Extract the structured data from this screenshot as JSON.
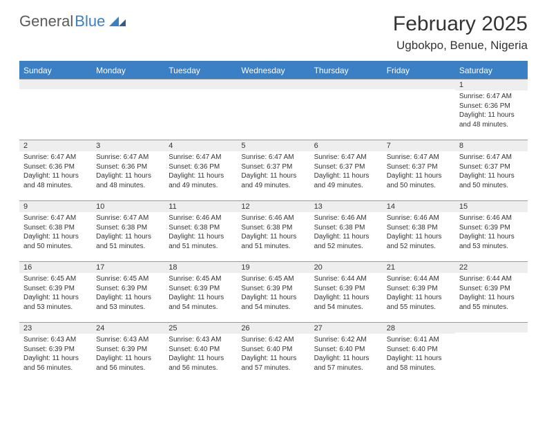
{
  "logo": {
    "text_a": "General",
    "text_b": "Blue"
  },
  "title": "February 2025",
  "location": "Ugbokpo, Benue, Nigeria",
  "colors": {
    "header_bg": "#3b7fc4",
    "header_fg": "#ffffff",
    "daynum_bg": "#eeeeee",
    "rule": "#999999"
  },
  "weekdays": [
    "Sunday",
    "Monday",
    "Tuesday",
    "Wednesday",
    "Thursday",
    "Friday",
    "Saturday"
  ],
  "grid": [
    [
      {
        "n": "",
        "lines": []
      },
      {
        "n": "",
        "lines": []
      },
      {
        "n": "",
        "lines": []
      },
      {
        "n": "",
        "lines": []
      },
      {
        "n": "",
        "lines": []
      },
      {
        "n": "",
        "lines": []
      },
      {
        "n": "1",
        "lines": [
          "Sunrise: 6:47 AM",
          "Sunset: 6:36 PM",
          "Daylight: 11 hours and 48 minutes."
        ]
      }
    ],
    [
      {
        "n": "2",
        "lines": [
          "Sunrise: 6:47 AM",
          "Sunset: 6:36 PM",
          "Daylight: 11 hours and 48 minutes."
        ]
      },
      {
        "n": "3",
        "lines": [
          "Sunrise: 6:47 AM",
          "Sunset: 6:36 PM",
          "Daylight: 11 hours and 48 minutes."
        ]
      },
      {
        "n": "4",
        "lines": [
          "Sunrise: 6:47 AM",
          "Sunset: 6:36 PM",
          "Daylight: 11 hours and 49 minutes."
        ]
      },
      {
        "n": "5",
        "lines": [
          "Sunrise: 6:47 AM",
          "Sunset: 6:37 PM",
          "Daylight: 11 hours and 49 minutes."
        ]
      },
      {
        "n": "6",
        "lines": [
          "Sunrise: 6:47 AM",
          "Sunset: 6:37 PM",
          "Daylight: 11 hours and 49 minutes."
        ]
      },
      {
        "n": "7",
        "lines": [
          "Sunrise: 6:47 AM",
          "Sunset: 6:37 PM",
          "Daylight: 11 hours and 50 minutes."
        ]
      },
      {
        "n": "8",
        "lines": [
          "Sunrise: 6:47 AM",
          "Sunset: 6:37 PM",
          "Daylight: 11 hours and 50 minutes."
        ]
      }
    ],
    [
      {
        "n": "9",
        "lines": [
          "Sunrise: 6:47 AM",
          "Sunset: 6:38 PM",
          "Daylight: 11 hours and 50 minutes."
        ]
      },
      {
        "n": "10",
        "lines": [
          "Sunrise: 6:47 AM",
          "Sunset: 6:38 PM",
          "Daylight: 11 hours and 51 minutes."
        ]
      },
      {
        "n": "11",
        "lines": [
          "Sunrise: 6:46 AM",
          "Sunset: 6:38 PM",
          "Daylight: 11 hours and 51 minutes."
        ]
      },
      {
        "n": "12",
        "lines": [
          "Sunrise: 6:46 AM",
          "Sunset: 6:38 PM",
          "Daylight: 11 hours and 51 minutes."
        ]
      },
      {
        "n": "13",
        "lines": [
          "Sunrise: 6:46 AM",
          "Sunset: 6:38 PM",
          "Daylight: 11 hours and 52 minutes."
        ]
      },
      {
        "n": "14",
        "lines": [
          "Sunrise: 6:46 AM",
          "Sunset: 6:38 PM",
          "Daylight: 11 hours and 52 minutes."
        ]
      },
      {
        "n": "15",
        "lines": [
          "Sunrise: 6:46 AM",
          "Sunset: 6:39 PM",
          "Daylight: 11 hours and 53 minutes."
        ]
      }
    ],
    [
      {
        "n": "16",
        "lines": [
          "Sunrise: 6:45 AM",
          "Sunset: 6:39 PM",
          "Daylight: 11 hours and 53 minutes."
        ]
      },
      {
        "n": "17",
        "lines": [
          "Sunrise: 6:45 AM",
          "Sunset: 6:39 PM",
          "Daylight: 11 hours and 53 minutes."
        ]
      },
      {
        "n": "18",
        "lines": [
          "Sunrise: 6:45 AM",
          "Sunset: 6:39 PM",
          "Daylight: 11 hours and 54 minutes."
        ]
      },
      {
        "n": "19",
        "lines": [
          "Sunrise: 6:45 AM",
          "Sunset: 6:39 PM",
          "Daylight: 11 hours and 54 minutes."
        ]
      },
      {
        "n": "20",
        "lines": [
          "Sunrise: 6:44 AM",
          "Sunset: 6:39 PM",
          "Daylight: 11 hours and 54 minutes."
        ]
      },
      {
        "n": "21",
        "lines": [
          "Sunrise: 6:44 AM",
          "Sunset: 6:39 PM",
          "Daylight: 11 hours and 55 minutes."
        ]
      },
      {
        "n": "22",
        "lines": [
          "Sunrise: 6:44 AM",
          "Sunset: 6:39 PM",
          "Daylight: 11 hours and 55 minutes."
        ]
      }
    ],
    [
      {
        "n": "23",
        "lines": [
          "Sunrise: 6:43 AM",
          "Sunset: 6:39 PM",
          "Daylight: 11 hours and 56 minutes."
        ]
      },
      {
        "n": "24",
        "lines": [
          "Sunrise: 6:43 AM",
          "Sunset: 6:39 PM",
          "Daylight: 11 hours and 56 minutes."
        ]
      },
      {
        "n": "25",
        "lines": [
          "Sunrise: 6:43 AM",
          "Sunset: 6:40 PM",
          "Daylight: 11 hours and 56 minutes."
        ]
      },
      {
        "n": "26",
        "lines": [
          "Sunrise: 6:42 AM",
          "Sunset: 6:40 PM",
          "Daylight: 11 hours and 57 minutes."
        ]
      },
      {
        "n": "27",
        "lines": [
          "Sunrise: 6:42 AM",
          "Sunset: 6:40 PM",
          "Daylight: 11 hours and 57 minutes."
        ]
      },
      {
        "n": "28",
        "lines": [
          "Sunrise: 6:41 AM",
          "Sunset: 6:40 PM",
          "Daylight: 11 hours and 58 minutes."
        ]
      },
      {
        "n": "",
        "lines": []
      }
    ]
  ]
}
